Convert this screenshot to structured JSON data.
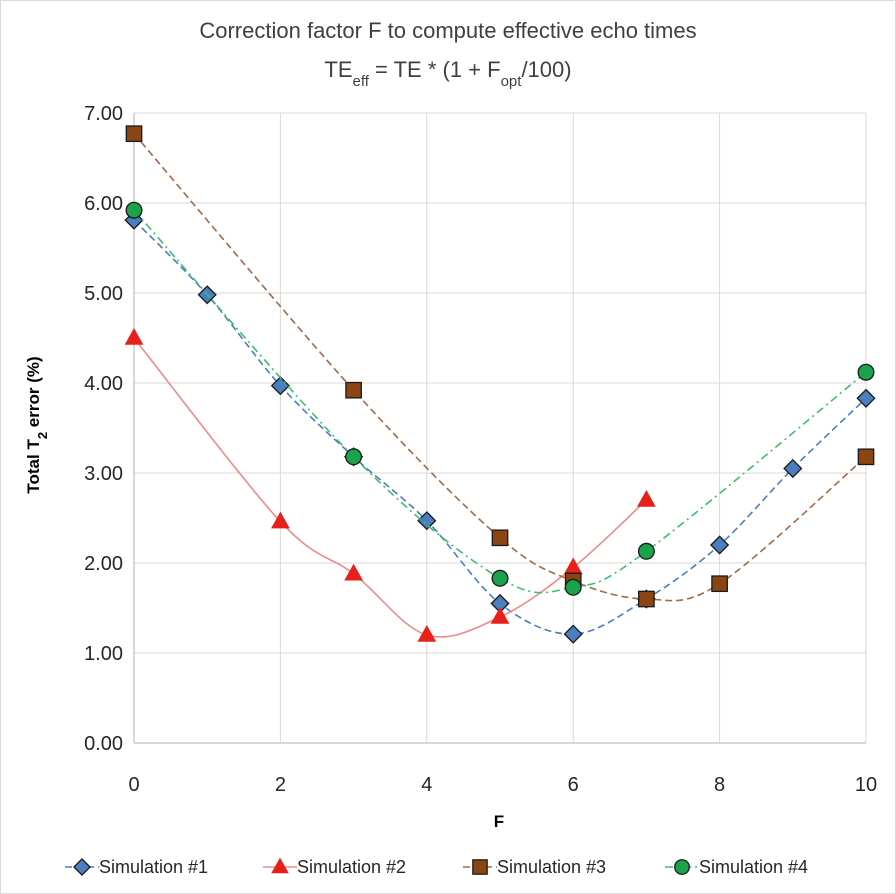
{
  "chart_data": {
    "type": "line",
    "title": "Correction factor F to compute effective echo times",
    "subtitle": {
      "prefix": "TE",
      "prefix_sub": "eff",
      "middle": " = TE * (1 + F",
      "middle_sub": "opt",
      "suffix": "/100)"
    },
    "xlabel": "F",
    "ylabel": {
      "prefix": "Total T",
      "sub": "2",
      "suffix": " error (%)"
    },
    "xlim": [
      0,
      10
    ],
    "ylim": [
      0,
      7
    ],
    "x_ticks": [
      "0",
      "2",
      "4",
      "6",
      "8",
      "10"
    ],
    "x_tick_values": [
      0,
      2,
      4,
      6,
      8,
      10
    ],
    "y_ticks": [
      "0.00",
      "1.00",
      "2.00",
      "3.00",
      "4.00",
      "5.00",
      "6.00",
      "7.00"
    ],
    "y_tick_values": [
      0,
      1,
      2,
      3,
      4,
      5,
      6,
      7
    ],
    "grid": true,
    "legend_position": "bottom",
    "series": [
      {
        "name": "Simulation #1",
        "marker": "diamond",
        "marker_color": "#4a7ebf",
        "line_color": "#4a7ebf",
        "line_style": "dashed",
        "x": [
          0,
          1,
          2,
          3,
          4,
          5,
          6,
          7,
          8,
          9,
          10
        ],
        "y": [
          5.81,
          4.98,
          3.97,
          3.18,
          2.47,
          1.55,
          1.21,
          1.6,
          2.2,
          3.05,
          3.83
        ]
      },
      {
        "name": "Simulation #2",
        "marker": "triangle",
        "marker_color": "#e8201b",
        "line_color": "#f08a8a",
        "line_style": "solid",
        "x": [
          0,
          2,
          3,
          4,
          5,
          6,
          7
        ],
        "y": [
          4.5,
          2.46,
          1.88,
          1.2,
          1.4,
          1.95,
          2.7
        ]
      },
      {
        "name": "Simulation #3",
        "marker": "square",
        "marker_color": "#8b4513",
        "line_color": "#a0694a",
        "line_style": "dashed",
        "x": [
          0,
          3,
          5,
          6,
          7,
          8,
          10
        ],
        "y": [
          6.77,
          3.92,
          2.28,
          1.8,
          1.6,
          1.77,
          3.18
        ]
      },
      {
        "name": "Simulation #4",
        "marker": "circle",
        "marker_color": "#1aa34a",
        "line_color": "#3cbf6a",
        "line_style": "dashdot",
        "x": [
          0,
          3,
          5,
          6,
          7,
          10
        ],
        "y": [
          5.92,
          3.18,
          1.83,
          1.73,
          2.13,
          4.12
        ]
      }
    ]
  }
}
